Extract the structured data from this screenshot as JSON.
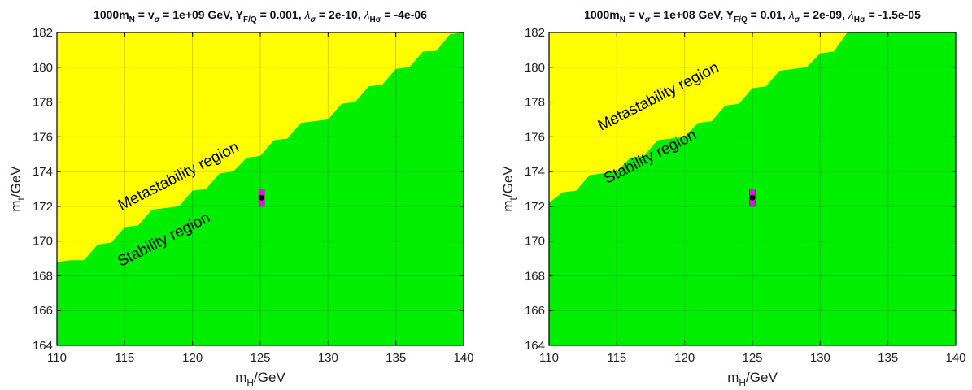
{
  "chart_data": [
    {
      "type": "area",
      "title": "1000m_N = v_σ = 1e+09 GeV, Y_F/Q = 0.001, λ_σ = 2e-10, λ_Hσ = -4e-06",
      "title_parts": {
        "mN": "1000m",
        "mN_sub": "N",
        "v": " = v",
        "v_sub": "σ",
        "rest1": " = 1e+09 GeV, Y",
        "Y_sub": "F/Q",
        "rest2": " = 0.001, ",
        "lam1": "λ",
        "lam1_sub": "σ",
        "rest3": " = 2e-10, ",
        "lam2": "λ",
        "lam2_sub": "Hσ",
        "rest4": " = -4e-06"
      },
      "xlabel": {
        "main": "m",
        "sub": "H",
        "unit": "/GeV"
      },
      "ylabel": {
        "main": "m",
        "sub": "t",
        "unit": "/GeV"
      },
      "xlim": [
        110,
        140
      ],
      "ylim": [
        164,
        182
      ],
      "xticks": [
        "110",
        "115",
        "120",
        "125",
        "130",
        "135",
        "140"
      ],
      "yticks": [
        "164",
        "166",
        "168",
        "170",
        "172",
        "174",
        "176",
        "178",
        "180",
        "182"
      ],
      "grid": true,
      "regions": [
        {
          "name": "Metastability region",
          "color": "#ffff00"
        },
        {
          "name": "Stability region",
          "color": "#00ee00"
        }
      ],
      "boundary": {
        "x": [
          110,
          111,
          112,
          113,
          114,
          115,
          116,
          117,
          118,
          119,
          120,
          121,
          122,
          123,
          124,
          125,
          126,
          127,
          128,
          129,
          130,
          131,
          132,
          133,
          134,
          135,
          136,
          137,
          138,
          139,
          140
        ],
        "y": [
          168.8,
          168.9,
          168.9,
          169.8,
          169.9,
          170.8,
          170.9,
          171.8,
          171.9,
          172.0,
          172.9,
          173.0,
          173.9,
          174.0,
          174.8,
          174.9,
          175.8,
          175.9,
          176.8,
          176.9,
          177.0,
          177.9,
          178.0,
          178.9,
          179.0,
          179.9,
          180.0,
          180.9,
          180.95,
          181.9,
          182
        ]
      },
      "measurement": {
        "mH": 125.1,
        "mt": 172.5,
        "mH_err": 0.2,
        "mt_err": 0.5,
        "box_color": "#ff00ff"
      }
    },
    {
      "type": "area",
      "title": "1000m_N = v_σ = 1e+08 GeV, Y_F/Q = 0.01, λ_σ = 2e-09, λ_Hσ = -1.5e-05",
      "title_parts": {
        "mN": "1000m",
        "mN_sub": "N",
        "v": " = v",
        "v_sub": "σ",
        "rest1": " = 1e+08 GeV, Y",
        "Y_sub": "F/Q",
        "rest2": " = 0.01, ",
        "lam1": "λ",
        "lam1_sub": "σ",
        "rest3": " = 2e-09, ",
        "lam2": "λ",
        "lam2_sub": "Hσ",
        "rest4": " = -1.5e-05"
      },
      "xlabel": {
        "main": "m",
        "sub": "H",
        "unit": "/GeV"
      },
      "ylabel": {
        "main": "m",
        "sub": "t",
        "unit": "/GeV"
      },
      "xlim": [
        110,
        140
      ],
      "ylim": [
        164,
        182
      ],
      "xticks": [
        "110",
        "115",
        "120",
        "125",
        "130",
        "135",
        "140"
      ],
      "yticks": [
        "164",
        "166",
        "168",
        "170",
        "172",
        "174",
        "176",
        "178",
        "180",
        "182"
      ],
      "grid": true,
      "regions": [
        {
          "name": "Metastability region",
          "color": "#ffff00"
        },
        {
          "name": "Stability region",
          "color": "#00ee00"
        }
      ],
      "boundary": {
        "x": [
          110,
          111,
          112,
          113,
          114,
          115,
          116,
          117,
          118,
          119,
          120,
          121,
          122,
          123,
          124,
          125,
          126,
          127,
          128,
          129,
          130,
          131,
          132
        ],
        "y": [
          172.2,
          172.8,
          172.9,
          173.8,
          173.9,
          174.0,
          174.8,
          174.9,
          175.8,
          175.9,
          176.0,
          176.8,
          176.9,
          177.8,
          177.9,
          178.8,
          178.9,
          179.8,
          179.9,
          180.0,
          180.8,
          180.9,
          182
        ]
      },
      "measurement": {
        "mH": 125.0,
        "mt": 172.5,
        "mH_err": 0.2,
        "mt_err": 0.5,
        "box_color": "#ff00ff"
      }
    }
  ]
}
